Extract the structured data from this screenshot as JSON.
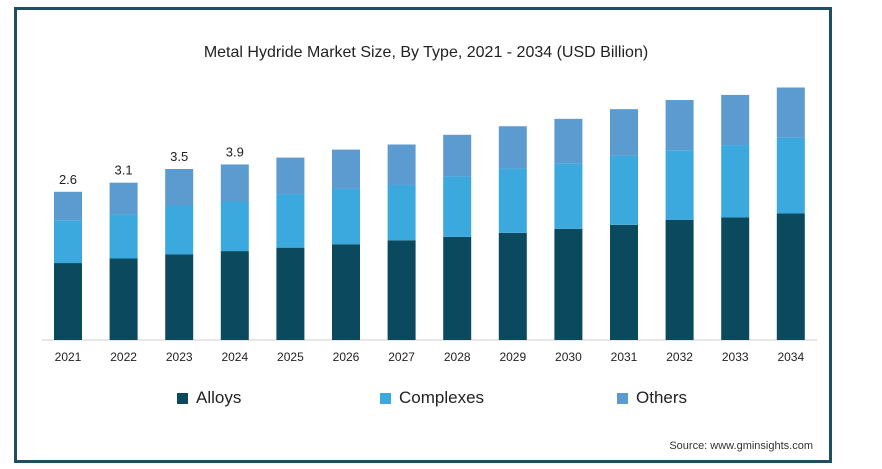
{
  "chart_data": {
    "type": "bar",
    "stacked": true,
    "title": "Metal Hydride Market Size, By Type, 2021 - 2034 (USD Billion)",
    "categories": [
      "2021",
      "2022",
      "2023",
      "2024",
      "2025",
      "2026",
      "2027",
      "2028",
      "2029",
      "2030",
      "2031",
      "2032",
      "2033",
      "2034"
    ],
    "series": [
      {
        "name": "Alloys",
        "color": "#0b4a5e",
        "values": [
          1.35,
          1.43,
          1.5,
          1.56,
          1.62,
          1.68,
          1.75,
          1.81,
          1.88,
          1.95,
          2.02,
          2.11,
          2.15,
          2.22
        ]
      },
      {
        "name": "Complexes",
        "color": "#3ba9dd",
        "values": [
          0.75,
          0.77,
          0.86,
          0.87,
          0.94,
          0.97,
          0.97,
          1.06,
          1.13,
          1.15,
          1.21,
          1.22,
          1.27,
          1.33
        ]
      },
      {
        "name": "Others",
        "color": "#5b9bd0",
        "values": [
          0.5,
          0.56,
          0.64,
          0.65,
          0.64,
          0.69,
          0.71,
          0.73,
          0.74,
          0.78,
          0.82,
          0.88,
          0.88,
          0.88
        ]
      }
    ],
    "total_labels": [
      "2.6",
      "3.1",
      "3.5",
      "3.9"
    ],
    "ylim": [
      0,
      4.5
    ],
    "grid": false,
    "legend": "bottom"
  },
  "source_text": "Source: www.gminsights.com"
}
